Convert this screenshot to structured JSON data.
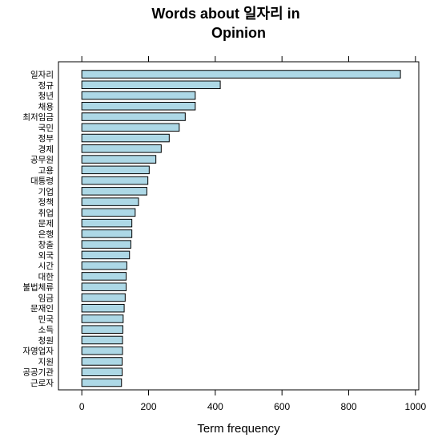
{
  "chart_data": {
    "type": "bar",
    "orientation": "horizontal",
    "title_line1": "Words about 일자리 in",
    "title_line2": "Opinion",
    "xlabel": "Term frequency",
    "ylabel": "",
    "xlim": [
      -70,
      1010
    ],
    "xticks": [
      0,
      200,
      400,
      600,
      800,
      1000
    ],
    "xtick_labels": [
      "0",
      "200",
      "400",
      "600",
      "800",
      "1000"
    ],
    "categories": [
      "일자리",
      "정규",
      "청년",
      "채용",
      "최저임금",
      "국민",
      "정부",
      "경제",
      "공무원",
      "고용",
      "대통령",
      "기업",
      "정책",
      "취업",
      "문제",
      "은행",
      "창출",
      "외국",
      "시간",
      "대한",
      "불법체류",
      "임금",
      "문재인",
      "민국",
      "소득",
      "청원",
      "자영업자",
      "지원",
      "공공기관",
      "근로자"
    ],
    "values": [
      955,
      415,
      340,
      340,
      310,
      292,
      262,
      238,
      222,
      202,
      198,
      195,
      170,
      160,
      150,
      150,
      147,
      143,
      135,
      133,
      133,
      130,
      127,
      124,
      123,
      122,
      122,
      121,
      121,
      119
    ],
    "bar_color": "#add8e6",
    "grid": false
  }
}
